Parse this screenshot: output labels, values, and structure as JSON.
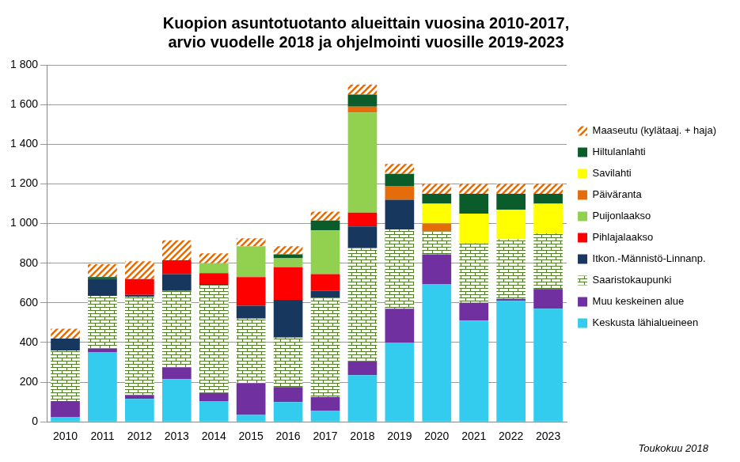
{
  "chart_data": {
    "type": "bar",
    "stacked": true,
    "grid": true,
    "legend": "right",
    "title": [
      "Kuopion asuntotuotanto alueittain vuosina 2010-2017,",
      "arvio vuodelle 2018 ja ohjelmointi vuosille 2019-2023"
    ],
    "annotation": "Toukokuu 2018",
    "categories": [
      "2010",
      "2011",
      "2012",
      "2013",
      "2014",
      "2015",
      "2016",
      "2017",
      "2018",
      "2019",
      "2020",
      "2021",
      "2022",
      "2023"
    ],
    "ylim": [
      0,
      1800
    ],
    "yticks": [
      0,
      200,
      400,
      600,
      800,
      {
        "value": 1000,
        "label": "1 000"
      },
      {
        "value": 1200,
        "label": "1 200"
      },
      {
        "value": 1400,
        "label": "1 400"
      },
      {
        "value": 1600,
        "label": "1 600"
      },
      {
        "value": 1800,
        "label": "1 800"
      }
    ],
    "series": [
      {
        "name": "Keskusta lähialueineen",
        "color": "#33CCEE",
        "values": [
          25,
          350,
          115,
          215,
          105,
          35,
          100,
          55,
          235,
          400,
          695,
          510,
          610,
          570
        ]
      },
      {
        "name": "Muu keskeinen alue",
        "color": "#7030A0",
        "values": [
          80,
          20,
          20,
          60,
          40,
          160,
          75,
          70,
          70,
          170,
          150,
          90,
          10,
          100
        ]
      },
      {
        "name": "Saaristokaupunki",
        "color": "#4F7A28",
        "marker": "brick",
        "values": [
          255,
          265,
          495,
          385,
          545,
          325,
          250,
          500,
          570,
          400,
          115,
          300,
          300,
          280
        ]
      },
      {
        "name": "Itkon.-Männistö-Linnanp.",
        "color": "#17375E",
        "values": [
          60,
          85,
          10,
          85,
          5,
          65,
          190,
          35,
          110,
          150,
          0,
          0,
          0,
          0
        ]
      },
      {
        "name": "Pihlajalaakso",
        "color": "#FF0000",
        "values": [
          0,
          0,
          80,
          70,
          55,
          145,
          165,
          85,
          70,
          0,
          0,
          0,
          0,
          0
        ]
      },
      {
        "name": "Puijonlaakso",
        "color": "#92D050",
        "values": [
          0,
          0,
          0,
          0,
          50,
          155,
          45,
          220,
          505,
          0,
          0,
          0,
          0,
          0
        ]
      },
      {
        "name": "Päiväranta",
        "color": "#E46C0A",
        "values": [
          0,
          0,
          0,
          0,
          0,
          0,
          0,
          0,
          30,
          70,
          40,
          0,
          0,
          0
        ]
      },
      {
        "name": "Savilahti",
        "color": "#FFFF00",
        "values": [
          0,
          0,
          0,
          0,
          0,
          0,
          0,
          0,
          0,
          0,
          100,
          150,
          150,
          150
        ]
      },
      {
        "name": "Hiltulanlahti",
        "color": "#0A5C2A",
        "values": [
          0,
          10,
          0,
          0,
          0,
          0,
          20,
          50,
          60,
          60,
          50,
          100,
          80,
          50
        ]
      },
      {
        "name": "Maaseutu (kylätaaj. + haja)",
        "color": "#E46C0A",
        "marker": "hatch",
        "values": [
          50,
          65,
          90,
          100,
          50,
          40,
          40,
          45,
          50,
          50,
          50,
          50,
          50,
          50
        ]
      }
    ]
  }
}
